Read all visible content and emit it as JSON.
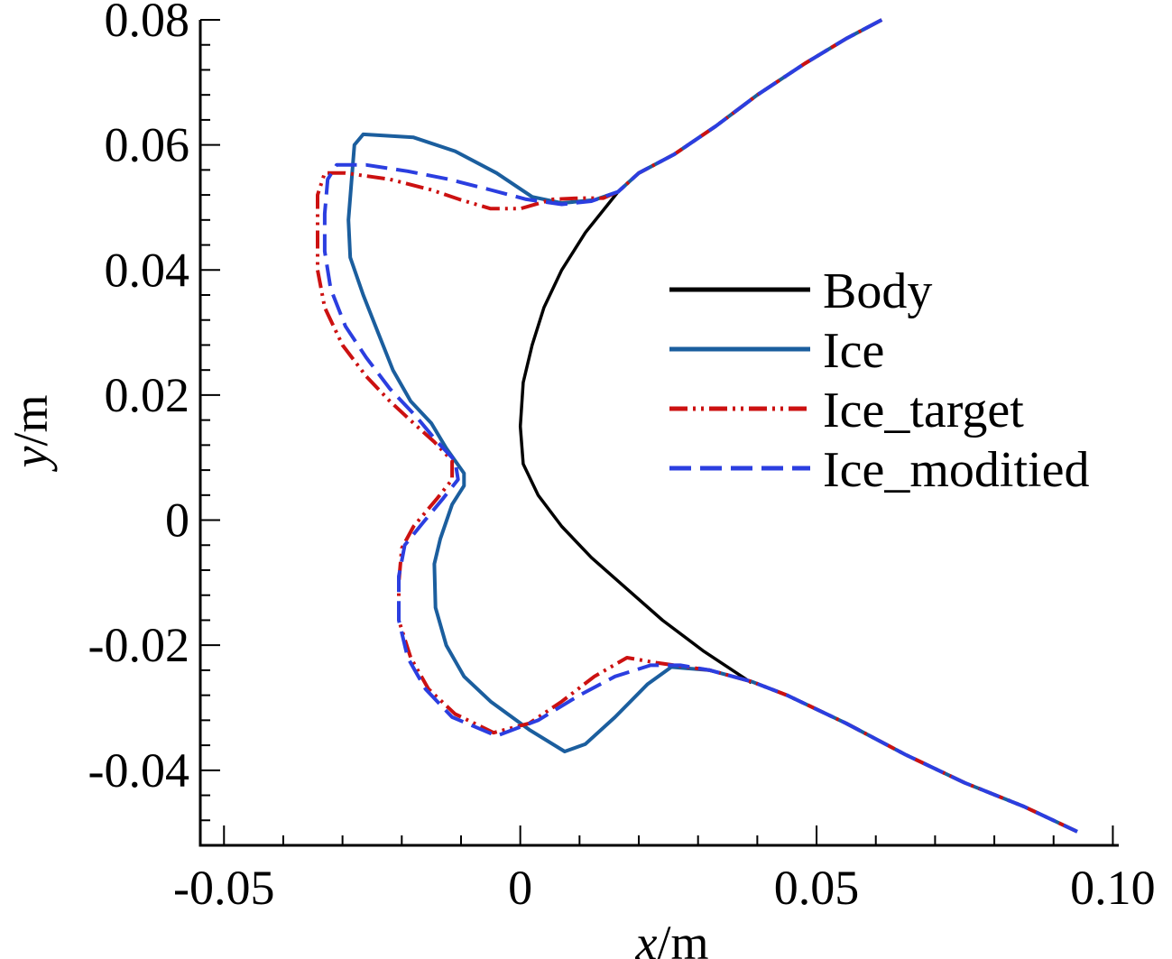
{
  "chart_data": {
    "type": "line",
    "title": "",
    "xlabel_var": "x",
    "xlabel_unit": "/m",
    "ylabel_var": "y",
    "ylabel_unit": "/m",
    "xlim": [
      -0.054,
      0.101
    ],
    "ylim": [
      -0.052,
      0.08
    ],
    "x_ticks": [
      -0.05,
      0,
      0.05,
      0.1
    ],
    "x_tick_labels": [
      "-0.05",
      "0",
      "0.05",
      "0.10"
    ],
    "y_ticks": [
      -0.04,
      -0.02,
      0,
      0.02,
      0.04,
      0.06,
      0.08
    ],
    "y_tick_labels": [
      "-0.04",
      "-0.02",
      "0",
      "0.02",
      "0.04",
      "0.06",
      "0.08"
    ],
    "legend_position": "right",
    "series": [
      {
        "name": "Body",
        "color": "#000000",
        "dash": "solid",
        "points": [
          [
            0.0165,
            0.0525
          ],
          [
            0.011,
            0.046
          ],
          [
            0.007,
            0.04
          ],
          [
            0.004,
            0.034
          ],
          [
            0.002,
            0.028
          ],
          [
            0.0005,
            0.022
          ],
          [
            0.0,
            0.015
          ],
          [
            0.0005,
            0.009
          ],
          [
            0.003,
            0.004
          ],
          [
            0.007,
            -0.001
          ],
          [
            0.012,
            -0.006
          ],
          [
            0.018,
            -0.011
          ],
          [
            0.024,
            -0.016
          ],
          [
            0.031,
            -0.021
          ],
          [
            0.039,
            -0.026
          ]
        ]
      },
      {
        "name": "Ice",
        "color": "#1b5e9e",
        "dash": "solid",
        "points": [
          [
            0.061,
            0.08
          ],
          [
            0.055,
            0.077
          ],
          [
            0.048,
            0.073
          ],
          [
            0.04,
            0.068
          ],
          [
            0.033,
            0.063
          ],
          [
            0.026,
            0.0585
          ],
          [
            0.02,
            0.0555
          ],
          [
            0.0165,
            0.0525
          ],
          [
            0.0125,
            0.0512
          ],
          [
            0.007,
            0.0507
          ],
          [
            0.002,
            0.0517
          ],
          [
            -0.004,
            0.0555
          ],
          [
            -0.011,
            0.059
          ],
          [
            -0.018,
            0.0612
          ],
          [
            -0.0265,
            0.0617
          ],
          [
            -0.028,
            0.06
          ],
          [
            -0.0285,
            0.054
          ],
          [
            -0.029,
            0.048
          ],
          [
            -0.0287,
            0.042
          ],
          [
            -0.0265,
            0.036
          ],
          [
            -0.024,
            0.03
          ],
          [
            -0.0215,
            0.024
          ],
          [
            -0.0185,
            0.019
          ],
          [
            -0.015,
            0.0155
          ],
          [
            -0.0125,
            0.0115
          ],
          [
            -0.0095,
            0.0075
          ],
          [
            -0.0095,
            0.0055
          ],
          [
            -0.0115,
            0.0025
          ],
          [
            -0.0135,
            -0.003
          ],
          [
            -0.0145,
            -0.007
          ],
          [
            -0.0143,
            -0.014
          ],
          [
            -0.0125,
            -0.02
          ],
          [
            -0.0095,
            -0.025
          ],
          [
            -0.005,
            -0.029
          ],
          [
            0.0015,
            -0.0335
          ],
          [
            0.0075,
            -0.037
          ],
          [
            0.011,
            -0.0358
          ],
          [
            0.016,
            -0.0315
          ],
          [
            0.0215,
            -0.0262
          ],
          [
            0.0255,
            -0.0235
          ],
          [
            0.032,
            -0.024
          ],
          [
            0.039,
            -0.0258
          ],
          [
            0.045,
            -0.028
          ],
          [
            0.055,
            -0.0325
          ],
          [
            0.065,
            -0.0375
          ],
          [
            0.075,
            -0.042
          ],
          [
            0.085,
            -0.0458
          ],
          [
            0.094,
            -0.0498
          ]
        ]
      },
      {
        "name": "Ice_target",
        "color": "#cc1111",
        "dash": "dashdot",
        "points": [
          [
            0.061,
            0.08
          ],
          [
            0.055,
            0.077
          ],
          [
            0.048,
            0.073
          ],
          [
            0.04,
            0.068
          ],
          [
            0.033,
            0.063
          ],
          [
            0.026,
            0.0585
          ],
          [
            0.02,
            0.0555
          ],
          [
            0.0165,
            0.0525
          ],
          [
            0.014,
            0.0515
          ],
          [
            0.01,
            0.0515
          ],
          [
            0.0055,
            0.0513
          ],
          [
            0.0,
            0.0498
          ],
          [
            -0.005,
            0.0498
          ],
          [
            -0.01,
            0.0512
          ],
          [
            -0.015,
            0.0528
          ],
          [
            -0.022,
            0.0545
          ],
          [
            -0.0295,
            0.0555
          ],
          [
            -0.033,
            0.0555
          ],
          [
            -0.0342,
            0.052
          ],
          [
            -0.0342,
            0.046
          ],
          [
            -0.0342,
            0.04
          ],
          [
            -0.033,
            0.034
          ],
          [
            -0.03,
            0.028
          ],
          [
            -0.026,
            0.023
          ],
          [
            -0.022,
            0.019
          ],
          [
            -0.018,
            0.0155
          ],
          [
            -0.0145,
            0.0125
          ],
          [
            -0.0115,
            0.0095
          ],
          [
            -0.0115,
            0.0065
          ],
          [
            -0.014,
            0.0035
          ],
          [
            -0.018,
            -0.001
          ],
          [
            -0.02,
            -0.0045
          ],
          [
            -0.0205,
            -0.01
          ],
          [
            -0.0205,
            -0.016
          ],
          [
            -0.0185,
            -0.022
          ],
          [
            -0.0155,
            -0.027
          ],
          [
            -0.011,
            -0.031
          ],
          [
            -0.0045,
            -0.034
          ],
          [
            0.0015,
            -0.0325
          ],
          [
            0.007,
            -0.029
          ],
          [
            0.0125,
            -0.025
          ],
          [
            0.018,
            -0.022
          ],
          [
            0.023,
            -0.0228
          ],
          [
            0.032,
            -0.024
          ],
          [
            0.039,
            -0.0258
          ],
          [
            0.045,
            -0.028
          ],
          [
            0.055,
            -0.0325
          ],
          [
            0.065,
            -0.0375
          ],
          [
            0.075,
            -0.042
          ],
          [
            0.085,
            -0.0458
          ],
          [
            0.094,
            -0.0498
          ]
        ]
      },
      {
        "name": "Ice_moditied",
        "color": "#2b3ee0",
        "dash": "dashed",
        "points": [
          [
            0.061,
            0.08
          ],
          [
            0.055,
            0.077
          ],
          [
            0.048,
            0.073
          ],
          [
            0.04,
            0.068
          ],
          [
            0.033,
            0.063
          ],
          [
            0.026,
            0.0585
          ],
          [
            0.02,
            0.0555
          ],
          [
            0.0165,
            0.0525
          ],
          [
            0.012,
            0.051
          ],
          [
            0.007,
            0.0505
          ],
          [
            0.001,
            0.0513
          ],
          [
            -0.005,
            0.0528
          ],
          [
            -0.012,
            0.0545
          ],
          [
            -0.019,
            0.0558
          ],
          [
            -0.026,
            0.0568
          ],
          [
            -0.031,
            0.0568
          ],
          [
            -0.0325,
            0.0545
          ],
          [
            -0.033,
            0.049
          ],
          [
            -0.033,
            0.043
          ],
          [
            -0.032,
            0.037
          ],
          [
            -0.0295,
            0.031
          ],
          [
            -0.026,
            0.026
          ],
          [
            -0.022,
            0.021
          ],
          [
            -0.0175,
            0.0165
          ],
          [
            -0.014,
            0.0125
          ],
          [
            -0.011,
            0.0095
          ],
          [
            -0.0105,
            0.0065
          ],
          [
            -0.013,
            0.0035
          ],
          [
            -0.0165,
            -0.0005
          ],
          [
            -0.0195,
            -0.004
          ],
          [
            -0.0205,
            -0.009
          ],
          [
            -0.0205,
            -0.016
          ],
          [
            -0.019,
            -0.022
          ],
          [
            -0.016,
            -0.027
          ],
          [
            -0.0115,
            -0.0315
          ],
          [
            -0.004,
            -0.0345
          ],
          [
            0.003,
            -0.032
          ],
          [
            0.01,
            -0.028
          ],
          [
            0.016,
            -0.025
          ],
          [
            0.022,
            -0.0232
          ],
          [
            0.027,
            -0.0232
          ],
          [
            0.032,
            -0.024
          ],
          [
            0.039,
            -0.0258
          ],
          [
            0.045,
            -0.028
          ],
          [
            0.055,
            -0.0325
          ],
          [
            0.065,
            -0.0375
          ],
          [
            0.075,
            -0.042
          ],
          [
            0.085,
            -0.0458
          ],
          [
            0.094,
            -0.0498
          ]
        ]
      }
    ]
  }
}
